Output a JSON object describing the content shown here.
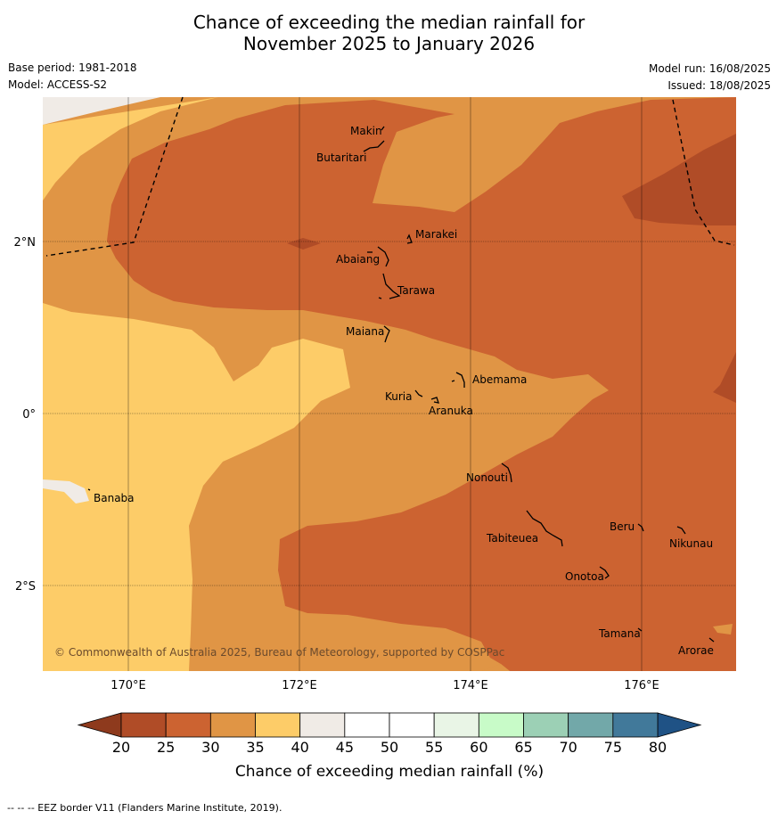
{
  "title": {
    "line1": "Chance of exceeding the median rainfall for",
    "line2": "November 2025 to January 2026"
  },
  "meta": {
    "base_period": "Base period: 1981-2018",
    "model": "Model: ACCESS-S2",
    "model_run": "Model run: 16/08/2025",
    "issued": "Issued: 18/08/2025"
  },
  "map": {
    "lat_labels": [
      "2°N",
      "0°",
      "2°S"
    ],
    "lon_labels": [
      "170°E",
      "172°E",
      "174°E",
      "176°E"
    ],
    "places": [
      {
        "name": "Makin"
      },
      {
        "name": "Butaritari"
      },
      {
        "name": "Marakei"
      },
      {
        "name": "Abaiang"
      },
      {
        "name": "Tarawa"
      },
      {
        "name": "Maiana"
      },
      {
        "name": "Abemama"
      },
      {
        "name": "Kuria"
      },
      {
        "name": "Aranuka"
      },
      {
        "name": "Banaba"
      },
      {
        "name": "Nonouti"
      },
      {
        "name": "Tabiteuea"
      },
      {
        "name": "Beru"
      },
      {
        "name": "Nikunau"
      },
      {
        "name": "Onotoa"
      },
      {
        "name": "Tamana"
      },
      {
        "name": "Arorae"
      }
    ],
    "copyright": "© Commonwealth of Australia 2025, Bureau of Meteorology, supported by COSPPac"
  },
  "colorbar": {
    "ticks": [
      "20",
      "25",
      "30",
      "35",
      "40",
      "45",
      "50",
      "55",
      "60",
      "65",
      "70",
      "75",
      "80"
    ],
    "colors": [
      "#b04c27",
      "#cc6331",
      "#e09545",
      "#fdcc68",
      "#f0ebe6",
      "#ffffff",
      "#ffffff",
      "#e9f5e6",
      "#c8fbc8",
      "#9cd0b5",
      "#72a8a9",
      "#41799a"
    ],
    "under_color": "#8e3a1d",
    "over_color": "#1f5285",
    "label": "Chance of exceeding median rainfall (%)"
  },
  "footer": "-- -- -- EEZ border V11 (Flanders Marine Institute, 2019)."
}
